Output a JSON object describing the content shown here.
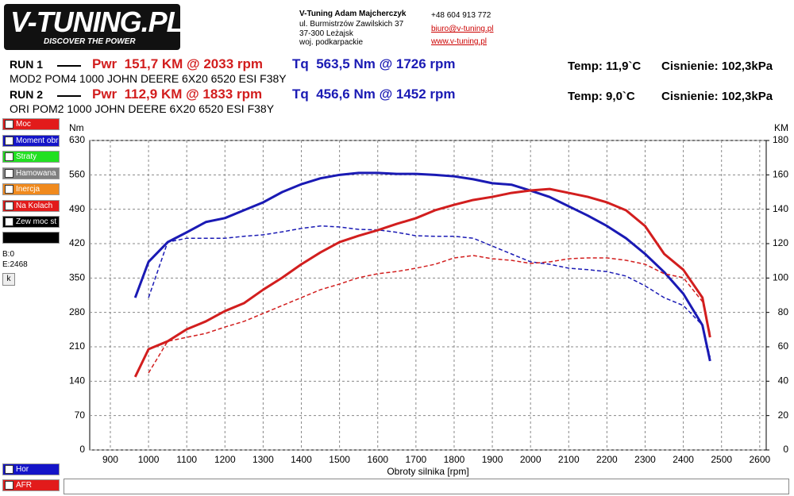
{
  "header": {
    "logo": "V-TUNING.PL",
    "slogan": "DISCOVER THE POWER",
    "company": "V-Tuning Adam Majcherczyk",
    "street": "ul. Burmistrzów Zawilskich 37",
    "city": "37-300 Leżajsk",
    "region": "woj. podkarpackie",
    "phone": "+48 604 913 772",
    "email": "biuro@v-tuning.pl",
    "web": "www.v-tuning.pl"
  },
  "runs": [
    {
      "label": "RUN 1",
      "power": "Pwr  151,7 KM @ 2033 rpm",
      "torque": "Tq  563,5 Nm @ 1726 rpm",
      "temp": "Temp: 11,9`C",
      "pressure": "Cisnienie: 102,3kPa",
      "desc": "MOD2 POM4 1000 JOHN DEERE 6X20 6520 ESI F38Y"
    },
    {
      "label": "RUN 2",
      "power": "Pwr  112,9 KM @ 1833 rpm",
      "torque": "Tq  456,6 Nm @ 1452 rpm",
      "temp": "Temp: 9,0`C",
      "pressure": "Cisnienie: 102,3kPa",
      "desc": "ORI POM2 1000 JOHN DEERE 6X20 6520 ESI F38Y"
    }
  ],
  "sidebar": {
    "options": [
      {
        "label": "Moc",
        "color": "#e21b1b",
        "checked": true
      },
      {
        "label": "Moment obr",
        "color": "#1414c8",
        "checked": true
      },
      {
        "label": "Straty",
        "color": "#22e022",
        "checked": false
      },
      {
        "label": "Hamowana",
        "color": "#808080",
        "checked": false
      },
      {
        "label": "Inercja",
        "color": "#f08a1e",
        "checked": false
      },
      {
        "label": "Na Kolach",
        "color": "#e21b1b",
        "checked": false
      },
      {
        "label": "Zew moc st",
        "color": "#000000",
        "checked": true
      }
    ],
    "b": "B:0",
    "e": "E:2468",
    "button": "k",
    "bottom": [
      {
        "label": "Hor",
        "color": "#1414c8"
      },
      {
        "label": "AFR",
        "color": "#e21b1b"
      }
    ]
  },
  "chart_data": {
    "type": "line",
    "y_label": "Nm",
    "y2_label": "KM",
    "x_label": "Obroty silnika [rpm]",
    "grid": true,
    "xlim": [
      846,
      2617
    ],
    "xticks": [
      900,
      1000,
      1100,
      1200,
      1300,
      1400,
      1500,
      1600,
      1700,
      1800,
      1900,
      2000,
      2100,
      2200,
      2300,
      2400,
      2500,
      2600
    ],
    "ylim": [
      0,
      630
    ],
    "yticks": [
      0,
      70,
      140,
      210,
      280,
      350,
      420,
      490,
      560,
      630
    ],
    "y2lim": [
      0,
      180
    ],
    "y2ticks": [
      0,
      20,
      40,
      60,
      80,
      100,
      120,
      140,
      160,
      180
    ],
    "x": [
      965,
      1000,
      1050,
      1100,
      1150,
      1200,
      1250,
      1300,
      1350,
      1400,
      1450,
      1500,
      1550,
      1600,
      1650,
      1700,
      1750,
      1800,
      1850,
      1900,
      1950,
      2000,
      2050,
      2100,
      2150,
      2200,
      2250,
      2300,
      2350,
      2400,
      2450,
      2470
    ],
    "series": [
      {
        "color": "#1a1ab4",
        "dashed": false,
        "values": [
          310,
          383,
          423,
          443,
          464,
          472,
          488,
          504,
          525,
          541,
          553,
          560,
          564,
          564,
          562,
          562,
          560,
          557,
          551,
          543,
          540,
          528,
          515,
          496,
          477,
          456,
          431,
          399,
          362,
          318,
          254,
          181
        ]
      },
      {
        "color": "#1a1ab4",
        "dashed": true,
        "values": [
          null,
          310,
          423,
          431,
          431,
          431,
          435,
          438,
          444,
          451,
          456,
          454,
          449,
          448,
          443,
          436,
          435,
          435,
          431,
          415,
          399,
          383,
          378,
          370,
          367,
          363,
          354,
          334,
          310,
          294,
          254,
          189
        ]
      },
      {
        "color": "#d21e1e",
        "dashed": false,
        "axis": "y2",
        "values": [
          42.5,
          58.6,
          63.2,
          70.2,
          74.8,
          80.8,
          85.4,
          93.2,
          100.2,
          108,
          114.9,
          120.9,
          124.6,
          127.8,
          131.5,
          134.8,
          139.4,
          142.6,
          145.4,
          147.2,
          149.5,
          150.9,
          151.8,
          149.5,
          147.2,
          144,
          139.4,
          130.2,
          114,
          104.8,
          88.6,
          65.5
        ]
      },
      {
        "color": "#d21e1e",
        "dashed": true,
        "axis": "y2",
        "values": [
          null,
          44.8,
          63.2,
          65.5,
          67.8,
          71.5,
          74.8,
          79.4,
          84,
          88.6,
          93.2,
          96.5,
          100.2,
          102.5,
          103.8,
          105.7,
          108,
          111.7,
          113.1,
          111.2,
          110.3,
          108.5,
          109.4,
          111.2,
          111.7,
          111.7,
          110.3,
          108,
          102.5,
          100.2,
          86.3,
          67.8
        ]
      }
    ]
  }
}
